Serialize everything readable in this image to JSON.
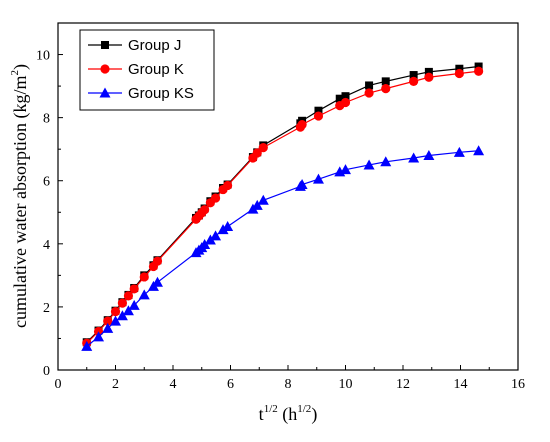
{
  "chart_data": {
    "type": "scatter",
    "xlabel": "t",
    "xlabel_sup": "1/2",
    "xlabel_unit_open": " (h",
    "xlabel_unit_sup": "1/2",
    "xlabel_unit_close": ")",
    "ylabel": "cumulative water absorption (kg/m",
    "ylabel_sup": "2",
    "ylabel_close": ")",
    "xlim": [
      0,
      16
    ],
    "ylim": [
      0,
      11
    ],
    "xticks": [
      "0",
      "2",
      "4",
      "6",
      "8",
      "10",
      "12",
      "14",
      "16"
    ],
    "yticks": [
      "0",
      "2",
      "4",
      "6",
      "8",
      "10"
    ],
    "grid": false,
    "legend_position": "top-left",
    "series": [
      {
        "name": "Group J",
        "color": "#000000",
        "marker": "square",
        "x": [
          1.0,
          1.41,
          1.73,
          2.0,
          2.24,
          2.45,
          2.65,
          3.0,
          3.32,
          3.46,
          4.8,
          4.9,
          5.0,
          5.1,
          5.3,
          5.48,
          5.74,
          5.9,
          6.78,
          6.93,
          7.14,
          8.43,
          8.49,
          9.06,
          9.8,
          10.0,
          10.82,
          11.4,
          12.37,
          12.9,
          13.96,
          14.63
        ],
        "y": [
          0.88,
          1.25,
          1.58,
          1.88,
          2.15,
          2.38,
          2.6,
          3.0,
          3.32,
          3.48,
          4.82,
          4.9,
          5.0,
          5.12,
          5.35,
          5.5,
          5.77,
          5.88,
          6.75,
          6.9,
          7.12,
          7.82,
          7.9,
          8.22,
          8.6,
          8.68,
          9.02,
          9.15,
          9.35,
          9.45,
          9.55,
          9.62
        ]
      },
      {
        "name": "Group K",
        "color": "#ff0000",
        "marker": "circle",
        "x": [
          1.0,
          1.41,
          1.73,
          2.0,
          2.24,
          2.45,
          2.65,
          3.0,
          3.32,
          3.46,
          4.8,
          4.9,
          5.0,
          5.1,
          5.3,
          5.48,
          5.74,
          5.9,
          6.78,
          6.93,
          7.14,
          8.43,
          8.49,
          9.06,
          9.8,
          10.0,
          10.82,
          11.4,
          12.37,
          12.9,
          13.96,
          14.63
        ],
        "y": [
          0.85,
          1.22,
          1.55,
          1.85,
          2.12,
          2.35,
          2.57,
          2.95,
          3.28,
          3.45,
          4.78,
          4.88,
          4.98,
          5.08,
          5.3,
          5.45,
          5.72,
          5.85,
          6.72,
          6.88,
          7.05,
          7.7,
          7.78,
          8.05,
          8.38,
          8.48,
          8.78,
          8.92,
          9.15,
          9.28,
          9.4,
          9.47
        ]
      },
      {
        "name": "Group KS",
        "color": "#0000ff",
        "marker": "triangle",
        "x": [
          1.0,
          1.41,
          1.73,
          2.0,
          2.24,
          2.45,
          2.65,
          3.0,
          3.32,
          3.46,
          4.8,
          4.9,
          5.0,
          5.1,
          5.3,
          5.48,
          5.74,
          5.9,
          6.78,
          6.93,
          7.14,
          8.43,
          8.49,
          9.06,
          9.8,
          10.0,
          10.82,
          11.4,
          12.37,
          12.9,
          13.96,
          14.63
        ],
        "y": [
          0.75,
          1.05,
          1.32,
          1.55,
          1.72,
          1.88,
          2.05,
          2.38,
          2.65,
          2.78,
          3.72,
          3.8,
          3.88,
          3.98,
          4.12,
          4.25,
          4.45,
          4.55,
          5.1,
          5.22,
          5.38,
          5.82,
          5.88,
          6.05,
          6.28,
          6.35,
          6.5,
          6.6,
          6.72,
          6.8,
          6.9,
          6.95
        ]
      }
    ]
  }
}
